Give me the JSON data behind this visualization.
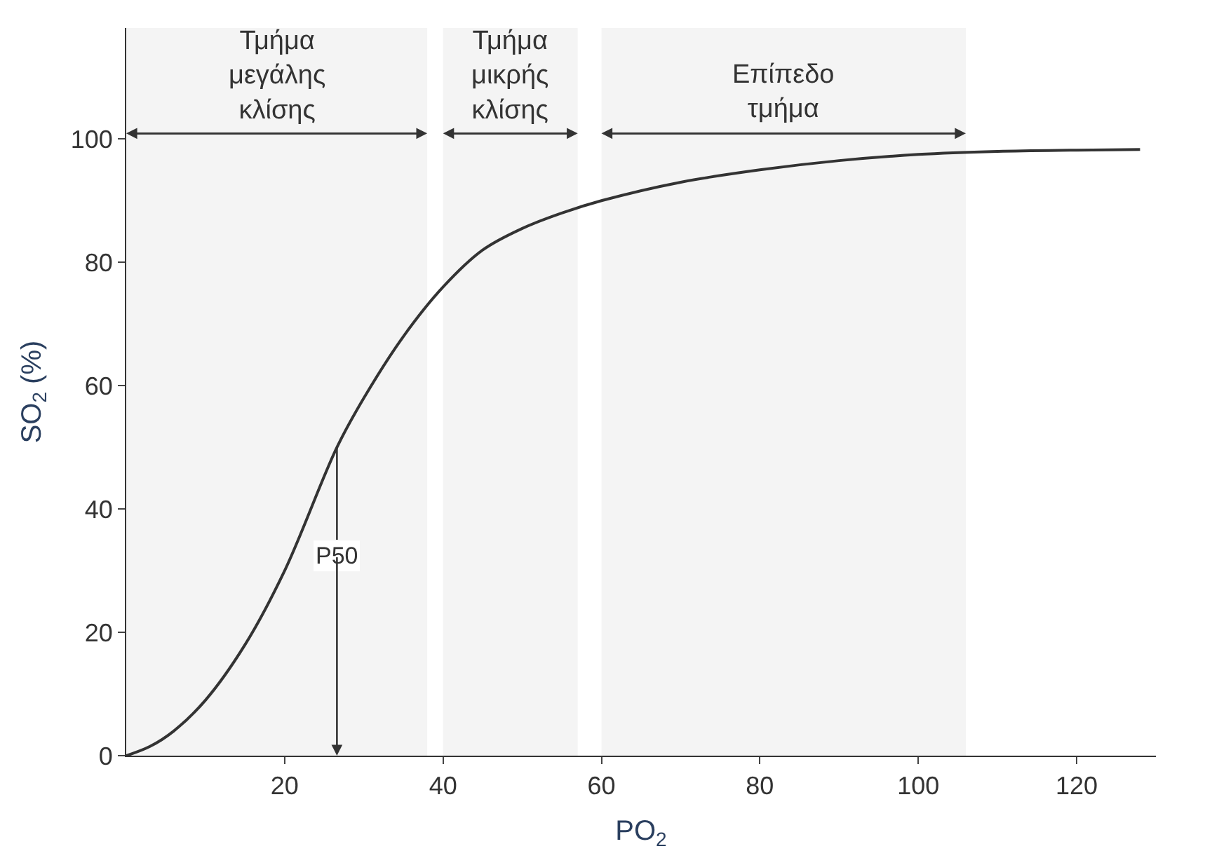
{
  "chart_data": {
    "type": "line",
    "xlabel": "PO$_{2}$",
    "ylabel": "SO$_{2}$ (%)",
    "x": [
      0,
      3,
      6,
      10,
      15,
      20,
      26.6,
      30,
      35,
      40,
      45,
      50,
      55,
      60,
      70,
      80,
      90,
      100,
      110,
      120,
      128
    ],
    "series": [
      {
        "color": "#333333",
        "values": [
          0,
          1.5,
          4,
          9,
          18,
          30,
          50,
          58,
          68,
          76,
          82,
          85.5,
          88,
          90,
          93,
          95,
          96.5,
          97.5,
          98,
          98.2,
          98.3
        ]
      }
    ],
    "xlim": [
      0,
      130
    ],
    "ylim": [
      0,
      118
    ],
    "xticks": [
      20,
      40,
      60,
      80,
      100,
      120
    ],
    "yticks": [
      0,
      20,
      40,
      60,
      80,
      100
    ],
    "grid": false,
    "legend": false,
    "marker": "none",
    "line_style": "solid",
    "bands": [
      {
        "axis": "x",
        "from": 0,
        "to": 38,
        "label": "Τμήμα\nμεγάλης\nκλίσης",
        "color": "#f4f4f4"
      },
      {
        "axis": "x",
        "from": 40,
        "to": 57,
        "label": "Τμήμα\nμικρής\nκλίσης",
        "color": "#f4f4f4"
      },
      {
        "axis": "x",
        "from": 60,
        "to": 106,
        "label": "Επίπεδο\nτμήμα",
        "color": "#f4f4f4"
      }
    ],
    "annotations": [
      {
        "text": "P50",
        "x": 26.6,
        "y": 50
      }
    ]
  }
}
